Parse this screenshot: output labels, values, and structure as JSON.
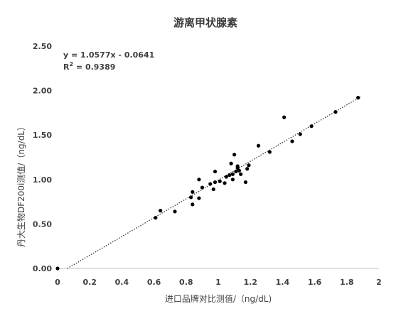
{
  "chart_data": {
    "type": "scatter",
    "title": "游离甲状腺素",
    "xlabel": "进口品牌对比测值/（ng/dL)",
    "ylabel": "丹大生物DF200i测值/（ng/dL）",
    "xlim": [
      0,
      2
    ],
    "ylim": [
      0,
      2.5
    ],
    "x_ticks": [
      "0",
      "0.2",
      "0.4",
      "0.6",
      "0.8",
      "1",
      "1.2",
      "1.4",
      "1.6",
      "1.8",
      "2"
    ],
    "y_ticks": [
      "0.00",
      "0.50",
      "1.00",
      "1.50",
      "2.00",
      "2.50"
    ],
    "grid": false,
    "legend": "none",
    "trendline": {
      "type": "linear",
      "slope": 1.0577,
      "intercept": -0.0641,
      "style": "dotted",
      "equation": "y = 1.0577x - 0.0641",
      "r2_prefix": "R",
      "r2_sup": "2",
      "r2_suffix": " = 0.9389"
    },
    "series": [
      {
        "points": [
          [
            0.0,
            0.0
          ],
          [
            0.61,
            0.57
          ],
          [
            0.64,
            0.65
          ],
          [
            0.73,
            0.64
          ],
          [
            0.83,
            0.8
          ],
          [
            0.84,
            0.72
          ],
          [
            0.84,
            0.86
          ],
          [
            0.88,
            0.79
          ],
          [
            0.88,
            1.0
          ],
          [
            0.9,
            0.91
          ],
          [
            0.95,
            0.95
          ],
          [
            0.97,
            0.89
          ],
          [
            0.98,
            1.09
          ],
          [
            0.98,
            0.97
          ],
          [
            1.01,
            0.98
          ],
          [
            1.04,
            0.96
          ],
          [
            1.05,
            1.03
          ],
          [
            1.07,
            1.05
          ],
          [
            1.08,
            1.18
          ],
          [
            1.09,
            1.0
          ],
          [
            1.09,
            1.06
          ],
          [
            1.1,
            1.28
          ],
          [
            1.11,
            1.09
          ],
          [
            1.12,
            1.15
          ],
          [
            1.12,
            1.13
          ],
          [
            1.13,
            1.1
          ],
          [
            1.14,
            1.06
          ],
          [
            1.17,
            0.97
          ],
          [
            1.18,
            1.12
          ],
          [
            1.19,
            1.16
          ],
          [
            1.25,
            1.38
          ],
          [
            1.32,
            1.31
          ],
          [
            1.41,
            1.7
          ],
          [
            1.46,
            1.43
          ],
          [
            1.51,
            1.51
          ],
          [
            1.58,
            1.6
          ],
          [
            1.73,
            1.76
          ],
          [
            1.87,
            1.92
          ]
        ],
        "color": "#000000"
      }
    ]
  }
}
